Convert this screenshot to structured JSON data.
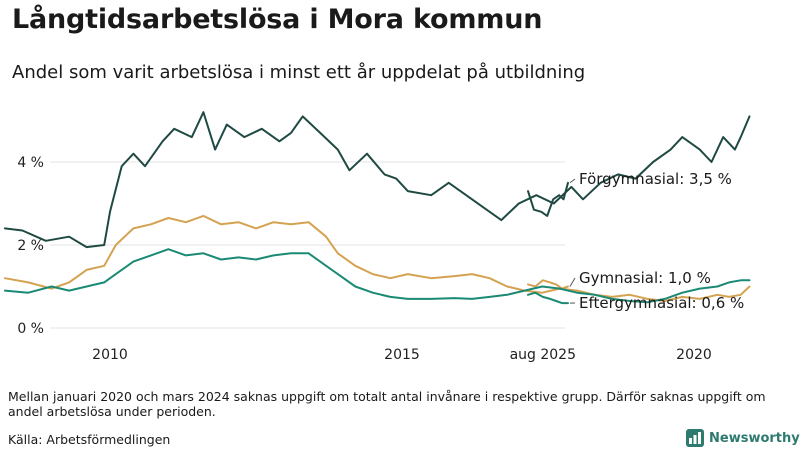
{
  "header": {
    "title": "Långtidsarbetslösa i Mora kommun",
    "subtitle": "Andel som varit arbetslösa i minst ett år uppdelat på utbildning"
  },
  "footer": {
    "note": "Mellan januari 2020 och mars 2024 saknas uppgift om totalt antal invånare i respektive grupp. Därför saknas uppgift om andel arbetslösa under perioden.",
    "source": "Källa: Arbetsförmedlingen",
    "brand": "Newsworthy"
  },
  "chart_data": {
    "type": "line",
    "title": "Långtidsarbetslösa i Mora kommun",
    "subtitle": "Andel som varit arbetslösa i minst ett år uppdelat på utbildning",
    "xlabel": "",
    "ylabel": "",
    "x_tick_labels": [
      "2010",
      "2015",
      "2020",
      "aug 2025"
    ],
    "y_tick_labels": [
      "0 %",
      "2 %",
      "4 %"
    ],
    "ylim": [
      0,
      5.4
    ],
    "gap_note": "Mellan januari 2020 och mars 2024 saknas uppgift",
    "series": [
      {
        "name": "Förgymnasial",
        "end_label": "Förgymnasial: 3,5 %",
        "color": "#1f4a43",
        "points_main": [
          [
            2008.2,
            2.4
          ],
          [
            2008.5,
            2.35
          ],
          [
            2008.9,
            2.1
          ],
          [
            2009.3,
            2.2
          ],
          [
            2009.6,
            1.95
          ],
          [
            2009.9,
            2.0
          ],
          [
            2010.0,
            2.8
          ],
          [
            2010.2,
            3.9
          ],
          [
            2010.4,
            4.2
          ],
          [
            2010.6,
            3.9
          ],
          [
            2010.9,
            4.5
          ],
          [
            2011.1,
            4.8
          ],
          [
            2011.4,
            4.6
          ],
          [
            2011.6,
            5.2
          ],
          [
            2011.8,
            4.3
          ],
          [
            2012.0,
            4.9
          ],
          [
            2012.3,
            4.6
          ],
          [
            2012.6,
            4.8
          ],
          [
            2012.9,
            4.5
          ],
          [
            2013.1,
            4.7
          ],
          [
            2013.3,
            5.1
          ],
          [
            2013.6,
            4.7
          ],
          [
            2013.9,
            4.3
          ],
          [
            2014.1,
            3.8
          ],
          [
            2014.4,
            4.2
          ],
          [
            2014.7,
            3.7
          ],
          [
            2014.9,
            3.6
          ],
          [
            2015.1,
            3.3
          ],
          [
            2015.5,
            3.2
          ],
          [
            2015.8,
            3.5
          ],
          [
            2016.1,
            3.2
          ],
          [
            2016.4,
            2.9
          ],
          [
            2016.7,
            2.6
          ],
          [
            2017.0,
            3.0
          ],
          [
            2017.3,
            3.2
          ],
          [
            2017.6,
            3.0
          ],
          [
            2017.9,
            3.4
          ],
          [
            2018.1,
            3.1
          ],
          [
            2018.4,
            3.5
          ],
          [
            2018.7,
            3.7
          ],
          [
            2019.0,
            3.6
          ],
          [
            2019.3,
            4.0
          ],
          [
            2019.6,
            4.3
          ],
          [
            2019.8,
            4.6
          ],
          [
            2020.1,
            4.3
          ],
          [
            2020.3,
            4.0
          ],
          [
            2020.5,
            4.6
          ],
          [
            2020.7,
            4.3
          ],
          [
            2020.8,
            4.6
          ],
          [
            2020.95,
            5.1
          ]
        ],
        "points_recent": [
          [
            2024.25,
            3.3
          ],
          [
            2024.45,
            2.85
          ],
          [
            2024.7,
            2.8
          ],
          [
            2024.9,
            2.7
          ],
          [
            2025.1,
            3.1
          ],
          [
            2025.3,
            3.2
          ],
          [
            2025.45,
            3.1
          ],
          [
            2025.6,
            3.5
          ]
        ]
      },
      {
        "name": "Gymnasial",
        "end_label": "Gymnasial: 1,0 %",
        "color": "#d4a251",
        "points_main": [
          [
            2008.2,
            1.2
          ],
          [
            2008.6,
            1.1
          ],
          [
            2009.0,
            0.95
          ],
          [
            2009.3,
            1.1
          ],
          [
            2009.6,
            1.4
          ],
          [
            2009.9,
            1.5
          ],
          [
            2010.1,
            2.0
          ],
          [
            2010.4,
            2.4
          ],
          [
            2010.7,
            2.5
          ],
          [
            2011.0,
            2.65
          ],
          [
            2011.3,
            2.55
          ],
          [
            2011.6,
            2.7
          ],
          [
            2011.9,
            2.5
          ],
          [
            2012.2,
            2.55
          ],
          [
            2012.5,
            2.4
          ],
          [
            2012.8,
            2.55
          ],
          [
            2013.1,
            2.5
          ],
          [
            2013.4,
            2.55
          ],
          [
            2013.7,
            2.2
          ],
          [
            2013.9,
            1.8
          ],
          [
            2014.2,
            1.5
          ],
          [
            2014.5,
            1.3
          ],
          [
            2014.8,
            1.2
          ],
          [
            2015.1,
            1.3
          ],
          [
            2015.5,
            1.2
          ],
          [
            2015.9,
            1.25
          ],
          [
            2016.2,
            1.3
          ],
          [
            2016.5,
            1.2
          ],
          [
            2016.8,
            1.0
          ],
          [
            2017.1,
            0.9
          ],
          [
            2017.4,
            0.85
          ],
          [
            2017.7,
            0.95
          ],
          [
            2018.0,
            0.9
          ],
          [
            2018.3,
            0.8
          ],
          [
            2018.6,
            0.75
          ],
          [
            2018.9,
            0.8
          ],
          [
            2019.2,
            0.7
          ],
          [
            2019.5,
            0.65
          ],
          [
            2019.8,
            0.75
          ],
          [
            2020.1,
            0.7
          ],
          [
            2020.4,
            0.8
          ],
          [
            2020.6,
            0.75
          ],
          [
            2020.8,
            0.8
          ],
          [
            2020.95,
            1.0
          ]
        ],
        "points_recent": [
          [
            2024.25,
            1.05
          ],
          [
            2024.5,
            1.0
          ],
          [
            2024.75,
            1.15
          ],
          [
            2025.0,
            1.1
          ],
          [
            2025.2,
            1.05
          ],
          [
            2025.4,
            0.95
          ],
          [
            2025.6,
            1.0
          ]
        ]
      },
      {
        "name": "Eftergymnasial",
        "end_label": "Eftergymnasial: 0,6 %",
        "color": "#1a8a75",
        "points_main": [
          [
            2008.2,
            0.9
          ],
          [
            2008.6,
            0.85
          ],
          [
            2009.0,
            1.0
          ],
          [
            2009.3,
            0.9
          ],
          [
            2009.6,
            1.0
          ],
          [
            2009.9,
            1.1
          ],
          [
            2010.1,
            1.3
          ],
          [
            2010.4,
            1.6
          ],
          [
            2010.7,
            1.75
          ],
          [
            2011.0,
            1.9
          ],
          [
            2011.3,
            1.75
          ],
          [
            2011.6,
            1.8
          ],
          [
            2011.9,
            1.65
          ],
          [
            2012.2,
            1.7
          ],
          [
            2012.5,
            1.65
          ],
          [
            2012.8,
            1.75
          ],
          [
            2013.1,
            1.8
          ],
          [
            2013.4,
            1.8
          ],
          [
            2013.7,
            1.5
          ],
          [
            2013.9,
            1.3
          ],
          [
            2014.2,
            1.0
          ],
          [
            2014.5,
            0.85
          ],
          [
            2014.8,
            0.75
          ],
          [
            2015.1,
            0.7
          ],
          [
            2015.5,
            0.7
          ],
          [
            2015.9,
            0.72
          ],
          [
            2016.2,
            0.7
          ],
          [
            2016.5,
            0.75
          ],
          [
            2016.8,
            0.8
          ],
          [
            2017.1,
            0.9
          ],
          [
            2017.4,
            1.0
          ],
          [
            2017.7,
            0.95
          ],
          [
            2018.0,
            0.85
          ],
          [
            2018.3,
            0.8
          ],
          [
            2018.6,
            0.7
          ],
          [
            2018.9,
            0.65
          ],
          [
            2019.2,
            0.62
          ],
          [
            2019.5,
            0.7
          ],
          [
            2019.8,
            0.85
          ],
          [
            2020.1,
            0.95
          ],
          [
            2020.4,
            1.0
          ],
          [
            2020.6,
            1.1
          ],
          [
            2020.8,
            1.15
          ],
          [
            2020.95,
            1.15
          ]
        ],
        "points_recent": [
          [
            2024.25,
            0.8
          ],
          [
            2024.5,
            0.85
          ],
          [
            2024.75,
            0.75
          ],
          [
            2025.0,
            0.7
          ],
          [
            2025.2,
            0.65
          ],
          [
            2025.4,
            0.6
          ],
          [
            2025.6,
            0.6
          ]
        ]
      }
    ]
  }
}
